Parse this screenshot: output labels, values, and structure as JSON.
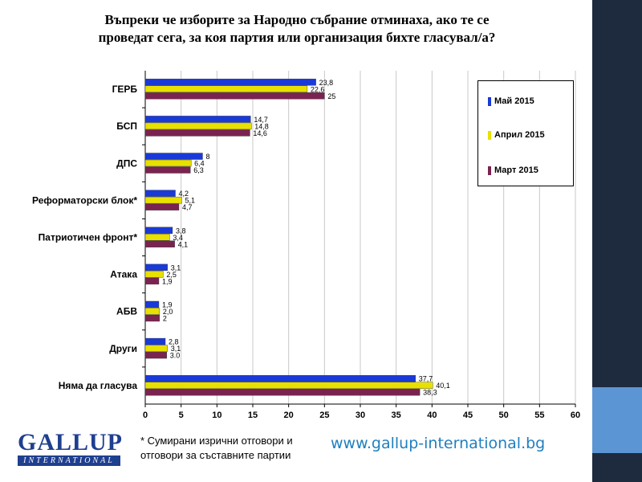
{
  "title_line1": "Въпреки че изборите  за Народно  събрание  отминаха,  ако те се",
  "title_line2": "проведат  сега, за коя партия  или организация  бихте гласувал/а?",
  "footnote_line1": "* Сумирани изрични отговори и",
  "footnote_line2": "отговори за съставните партии",
  "website": "www.gallup-international.bg",
  "logo": {
    "word": "GALLUP",
    "sub": "INTERNATIONAL"
  },
  "colors": {
    "may": "#1a3ad8",
    "april": "#e8e000",
    "march": "#7b2350",
    "strip": "#1e2a3e",
    "accent": "#5b95d4",
    "logo": "#1f3f8f",
    "website": "#1f7fc0"
  },
  "chart_data": {
    "type": "bar",
    "orientation": "horizontal",
    "categories": [
      "ГЕРБ",
      "БСП",
      "ДПС",
      "Реформаторски блок*",
      "Патриотичен фронт*",
      "Атака",
      "АБВ",
      "Други",
      "Няма да гласува"
    ],
    "series": [
      {
        "name": "Май 2015",
        "values": [
          23.8,
          14.7,
          8,
          4.2,
          3.8,
          3.1,
          1.9,
          2.8,
          37.7
        ],
        "labels": [
          "23,8",
          "14,7",
          "8",
          "4,2",
          "3,8",
          "3,1",
          "1,9",
          "2,8",
          "37,7"
        ]
      },
      {
        "name": "Април 2015",
        "values": [
          22.6,
          14.8,
          6.4,
          5.1,
          3.4,
          2.5,
          2.0,
          3.1,
          40.1
        ],
        "labels": [
          "22,6",
          "14,8",
          "6,4",
          "5,1",
          "3,4",
          "2,5",
          "2,0",
          "3,1",
          "40,1"
        ]
      },
      {
        "name": "Март 2015",
        "values": [
          25,
          14.6,
          6.3,
          4.7,
          4.1,
          1.9,
          2,
          3.0,
          38.3
        ],
        "labels": [
          "25",
          "14,6",
          "6,3",
          "4,7",
          "4,1",
          "1,9",
          "2",
          "3.0",
          "38,3"
        ]
      }
    ],
    "xlim": [
      0,
      60
    ],
    "xticks": [
      0,
      5,
      10,
      15,
      20,
      25,
      30,
      35,
      40,
      45,
      50,
      55,
      60
    ],
    "grid": "vertical",
    "legend": "top-right"
  }
}
